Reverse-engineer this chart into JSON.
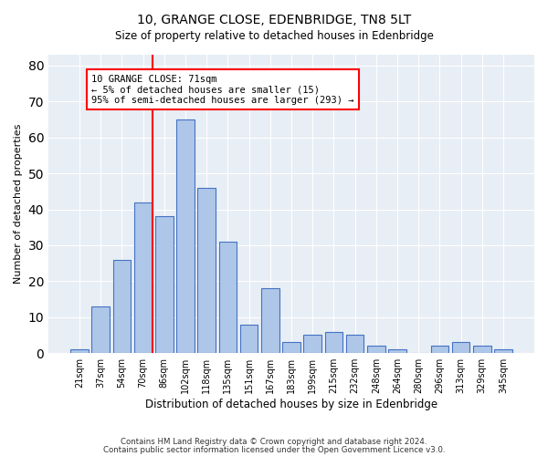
{
  "title1": "10, GRANGE CLOSE, EDENBRIDGE, TN8 5LT",
  "title2": "Size of property relative to detached houses in Edenbridge",
  "xlabel": "Distribution of detached houses by size in Edenbridge",
  "ylabel": "Number of detached properties",
  "categories": [
    "21sqm",
    "37sqm",
    "54sqm",
    "70sqm",
    "86sqm",
    "102sqm",
    "118sqm",
    "135sqm",
    "151sqm",
    "167sqm",
    "183sqm",
    "199sqm",
    "215sqm",
    "232sqm",
    "248sqm",
    "264sqm",
    "280sqm",
    "296sqm",
    "313sqm",
    "329sqm",
    "345sqm"
  ],
  "values": [
    1,
    13,
    26,
    42,
    38,
    65,
    46,
    31,
    8,
    18,
    3,
    5,
    6,
    5,
    2,
    1,
    0,
    2,
    3,
    2,
    1
  ],
  "bar_color": "#aec6e8",
  "bar_edge_color": "#4472c4",
  "annotation_text": "10 GRANGE CLOSE: 71sqm\n← 5% of detached houses are smaller (15)\n95% of semi-detached houses are larger (293) →",
  "annotation_box_color": "white",
  "annotation_edge_color": "red",
  "redline_color": "red",
  "ylim": [
    0,
    83
  ],
  "yticks": [
    0,
    10,
    20,
    30,
    40,
    50,
    60,
    70,
    80
  ],
  "footer1": "Contains HM Land Registry data © Crown copyright and database right 2024.",
  "footer2": "Contains public sector information licensed under the Open Government Licence v3.0.",
  "plot_bg_color": "#e8eef5"
}
